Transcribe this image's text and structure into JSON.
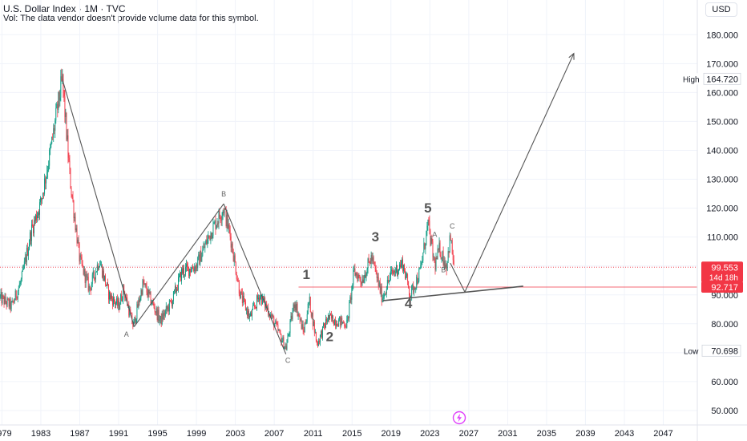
{
  "header": {
    "title": "U.S. Dollar Index · 1M · TVC",
    "volume_note": "Vol: The data vendor doesn't provide volume data for this symbol."
  },
  "currency_button": "USD",
  "colors": {
    "up": "#089981",
    "down": "#f23645",
    "line": "#555555",
    "price_badge": "#f23645",
    "axis_text": "#131722",
    "grid": "#f0f3fa"
  },
  "chart_data": {
    "type": "candlestick",
    "title": "U.S. Dollar Index",
    "interval": "1M",
    "source": "TVC",
    "xlim": [
      1978.8,
      2050.5
    ],
    "ylim": [
      45,
      192
    ],
    "y_ticks": [
      50,
      60,
      70,
      80,
      90,
      100,
      110,
      120,
      130,
      140,
      150,
      160,
      170,
      180
    ],
    "y_tick_labels": [
      "50.000",
      "60.000",
      "70.000",
      "80.000",
      "90.000",
      "100.000",
      "110.000",
      "120.000",
      "130.000",
      "140.000",
      "150.000",
      "160.000",
      "170.000",
      "180.000"
    ],
    "x_ticks": [
      1979,
      1983,
      1987,
      1991,
      1995,
      1999,
      2003,
      2007,
      2011,
      2015,
      2019,
      2023,
      2027,
      2031,
      2035,
      2039,
      2043,
      2047
    ],
    "x_tick_labels": [
      "1979",
      "1983",
      "1987",
      "1991",
      "1995",
      "1999",
      "2003",
      "2007",
      "2011",
      "2015",
      "2019",
      "2023",
      "2027",
      "2031",
      "2035",
      "2039",
      "2043",
      "2047"
    ],
    "price_path": [
      [
        1978.8,
        89
      ],
      [
        1980.0,
        86
      ],
      [
        1981.0,
        95
      ],
      [
        1982.0,
        112
      ],
      [
        1983.0,
        122
      ],
      [
        1984.0,
        140
      ],
      [
        1985.2,
        164.7
      ],
      [
        1986.0,
        130
      ],
      [
        1987.0,
        102
      ],
      [
        1988.0,
        92
      ],
      [
        1989.0,
        102
      ],
      [
        1990.0,
        90
      ],
      [
        1991.0,
        86
      ],
      [
        1991.5,
        92
      ],
      [
        1992.5,
        79
      ],
      [
        1993.5,
        94
      ],
      [
        1995.3,
        81
      ],
      [
        1996.5,
        88
      ],
      [
        1997.5,
        98
      ],
      [
        1999.0,
        100
      ],
      [
        2000.5,
        112
      ],
      [
        2001.8,
        120
      ],
      [
        2002.5,
        110
      ],
      [
        2003.5,
        90
      ],
      [
        2004.5,
        82
      ],
      [
        2005.5,
        90
      ],
      [
        2006.5,
        84
      ],
      [
        2008.2,
        71.5
      ],
      [
        2009.1,
        88
      ],
      [
        2010.0,
        77
      ],
      [
        2010.6,
        88
      ],
      [
        2011.4,
        73
      ],
      [
        2012.5,
        82
      ],
      [
        2014.5,
        80
      ],
      [
        2015.2,
        98
      ],
      [
        2016.0,
        95
      ],
      [
        2017.0,
        103
      ],
      [
        2018.1,
        89
      ],
      [
        2019.0,
        97
      ],
      [
        2020.2,
        101
      ],
      [
        2021.0,
        90
      ],
      [
        2022.0,
        98
      ],
      [
        2022.8,
        114.5
      ],
      [
        2023.5,
        100
      ],
      [
        2024.0,
        106
      ],
      [
        2024.7,
        100
      ],
      [
        2025.1,
        110
      ],
      [
        2025.5,
        99.5
      ]
    ],
    "wave_lines": [
      {
        "name": "decline-1985-1992",
        "points": [
          [
            1985.2,
            164.7
          ],
          [
            1992.6,
            79
          ]
        ]
      },
      {
        "name": "rally-1992-2001",
        "points": [
          [
            1992.6,
            79
          ],
          [
            2001.8,
            121.5
          ]
        ]
      },
      {
        "name": "decline-2001-2008",
        "points": [
          [
            2001.8,
            121.5
          ],
          [
            2008.2,
            69.5
          ]
        ]
      },
      {
        "name": "correction-drop",
        "points": [
          [
            2025.1,
            101
          ],
          [
            2026.6,
            91
          ]
        ]
      },
      {
        "name": "projected-rally",
        "points": [
          [
            2026.6,
            91
          ],
          [
            2037.8,
            173.5
          ]
        ]
      },
      {
        "name": "trendline",
        "points": [
          [
            2018.2,
            88
          ],
          [
            2032.6,
            93
          ]
        ]
      }
    ],
    "wave_labels": [
      {
        "text": "1",
        "x": 2010.3,
        "y": 95.5,
        "size": "large"
      },
      {
        "text": "2",
        "x": 2012.7,
        "y": 74.0,
        "size": "large"
      },
      {
        "text": "3",
        "x": 2017.4,
        "y": 108.5,
        "size": "large"
      },
      {
        "text": "4",
        "x": 2020.8,
        "y": 85.5,
        "size": "large"
      },
      {
        "text": "5",
        "x": 2022.8,
        "y": 118.5,
        "size": "large"
      },
      {
        "text": "A",
        "x": 1991.8,
        "y": 75.5,
        "size": "small"
      },
      {
        "text": "B",
        "x": 2001.8,
        "y": 124.0,
        "size": "small"
      },
      {
        "text": "C",
        "x": 2008.4,
        "y": 66.5,
        "size": "small"
      },
      {
        "text": "A",
        "x": 2023.5,
        "y": 110.0,
        "size": "small"
      },
      {
        "text": "B",
        "x": 2024.4,
        "y": 97.8,
        "size": "small"
      },
      {
        "text": "C",
        "x": 2025.3,
        "y": 113.0,
        "size": "small"
      }
    ],
    "levels": [
      {
        "name": "current-price",
        "value": 99.553,
        "style": "dotted"
      },
      {
        "name": "support-level",
        "value": 92.717,
        "style": "solid",
        "x_start": 2009.5
      }
    ],
    "badges": {
      "high": {
        "label": "High",
        "value": "164.720",
        "y": 164.72
      },
      "low": {
        "label": "Low",
        "value": "70.698",
        "y": 70.698
      },
      "current": {
        "value": "99.553",
        "countdown": "14d 18h",
        "y": 99.553
      },
      "support": {
        "value": "92.717",
        "y": 92.717
      }
    }
  }
}
